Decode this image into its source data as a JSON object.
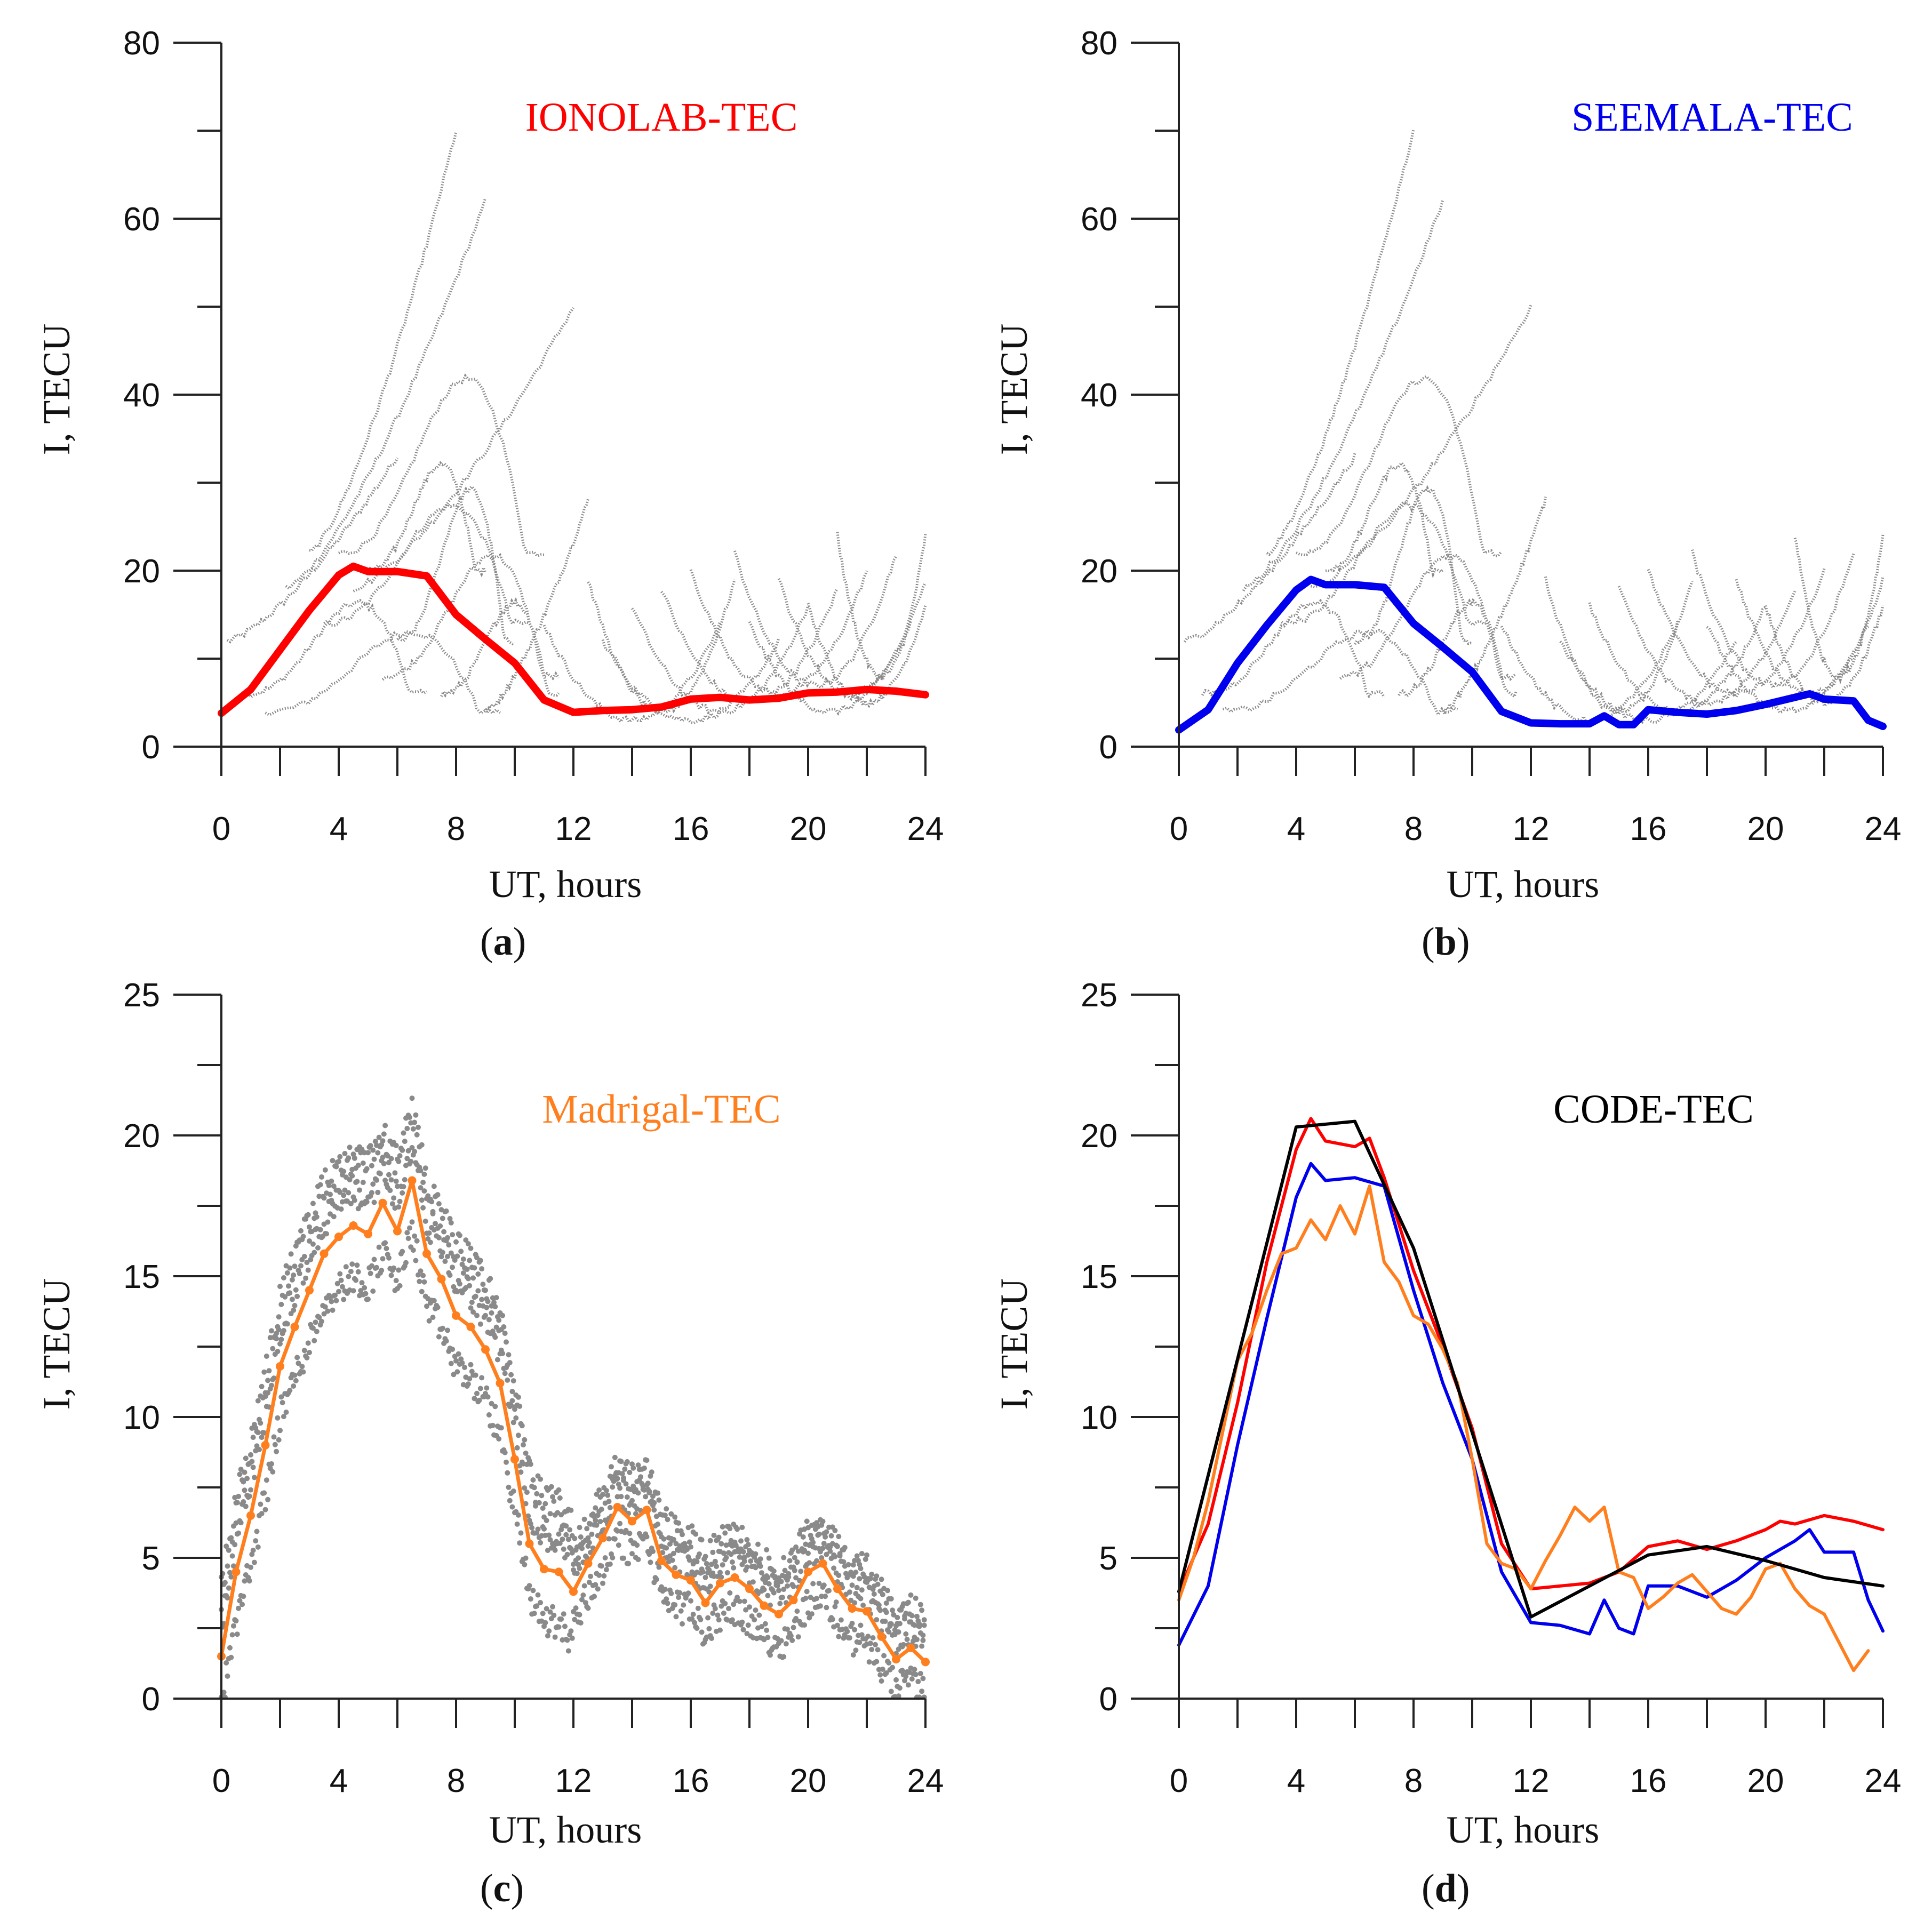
{
  "colors": {
    "ionolab": "#ff0000",
    "seemala": "#0000ee",
    "madrigal": "#ff7f1e",
    "code": "#000000",
    "traces": "#8a8a8a"
  },
  "chart_data": [
    {
      "type": "line",
      "panel_label": "a",
      "title": "IONOLAB-TEC",
      "title_color": "#ff0000",
      "xlabel": "UT, hours",
      "ylabel": "I, TECU",
      "xlim": [
        0,
        24
      ],
      "ylim": [
        0,
        80
      ],
      "xticks": [
        0,
        4,
        8,
        12,
        16,
        20,
        24
      ],
      "yticks": [
        0,
        20,
        40,
        60,
        80
      ],
      "background_traces": "gray scatter traces of individual satellite TEC",
      "series": [
        {
          "name": "IONOLAB-TEC",
          "color": "#ff0000",
          "x": [
            0,
            1,
            2,
            3,
            4,
            4.5,
            5,
            6,
            7,
            8,
            9,
            10,
            11,
            12,
            13,
            14,
            15,
            16,
            17,
            18,
            19,
            20,
            21,
            22,
            23,
            24
          ],
          "y": [
            3.8,
            6.5,
            11,
            15.5,
            19.5,
            20.5,
            19.9,
            19.9,
            19.4,
            15,
            12.2,
            9.5,
            5.3,
            3.9,
            4.1,
            4.2,
            4.5,
            5.4,
            5.6,
            5.3,
            5.5,
            6.1,
            6.2,
            6.5,
            6.3,
            5.9
          ]
        }
      ]
    },
    {
      "type": "line",
      "panel_label": "b",
      "title": "SEEMALA-TEC",
      "title_color": "#0000ee",
      "xlabel": "UT, hours",
      "ylabel": "I, TECU",
      "xlim": [
        0,
        24
      ],
      "ylim": [
        0,
        80
      ],
      "xticks": [
        0,
        4,
        8,
        12,
        16,
        20,
        24
      ],
      "yticks": [
        0,
        20,
        40,
        60,
        80
      ],
      "background_traces": "gray scatter traces of individual satellite TEC",
      "series": [
        {
          "name": "SEEMALA-TEC",
          "color": "#0000ee",
          "x": [
            0,
            1,
            2,
            3,
            4,
            4.5,
            5,
            6,
            7,
            8,
            9,
            10,
            11,
            12,
            13,
            14,
            14.5,
            15,
            15.5,
            16,
            17,
            18,
            19,
            20,
            21,
            21.5,
            22,
            23,
            23.5,
            24
          ],
          "y": [
            1.9,
            4.2,
            9.5,
            13.8,
            17.8,
            19,
            18.4,
            18.4,
            18.1,
            14,
            11.3,
            8.5,
            4,
            2.7,
            2.6,
            2.6,
            3.5,
            2.5,
            2.5,
            4.2,
            3.9,
            3.7,
            4.1,
            4.8,
            5.6,
            6,
            5.4,
            5.2,
            3,
            2.3
          ]
        }
      ]
    },
    {
      "type": "line",
      "panel_label": "c",
      "title": "Madrigal-TEC",
      "title_color": "#ff7f1e",
      "xlabel": "UT, hours",
      "ylabel": "I, TECU",
      "xlim": [
        0,
        24
      ],
      "ylim": [
        0,
        25
      ],
      "xticks": [
        0,
        4,
        8,
        12,
        16,
        20,
        24
      ],
      "yticks": [
        0,
        5,
        10,
        15,
        20,
        25
      ],
      "background_traces": "gray scatter points of individual Madrigal TEC values",
      "series": [
        {
          "name": "Madrigal-TEC",
          "color": "#ff7f1e",
          "x": [
            0,
            0.5,
            1,
            1.5,
            2,
            2.5,
            3,
            3.5,
            4,
            4.5,
            5,
            5.5,
            6,
            6.5,
            7,
            7.5,
            8,
            8.5,
            9,
            9.5,
            10,
            10.5,
            11,
            11.5,
            12,
            12.5,
            13,
            13.5,
            14,
            14.5,
            15,
            15.5,
            16,
            16.5,
            17,
            17.5,
            18,
            18.5,
            19,
            19.5,
            20,
            20.5,
            21,
            21.5,
            22,
            22.5,
            23,
            23.5,
            24
          ],
          "y": [
            1.5,
            4.5,
            6.5,
            9,
            11.8,
            13.2,
            14.5,
            15.8,
            16.4,
            16.8,
            16.5,
            17.6,
            16.6,
            18.4,
            15.8,
            14.9,
            13.6,
            13.2,
            12.4,
            11.2,
            8.5,
            5.5,
            4.6,
            4.5,
            3.8,
            4.8,
            5.7,
            6.8,
            6.3,
            6.7,
            4.9,
            4.4,
            4.2,
            3.4,
            4.1,
            4.3,
            3.9,
            3.3,
            3.0,
            3.5,
            4.5,
            4.8,
            3.9,
            3.2,
            3.1,
            2.2,
            1.4,
            1.8,
            1.3
          ]
        }
      ]
    },
    {
      "type": "line",
      "panel_label": "d",
      "title": "CODE-TEC",
      "title_color": "#000000",
      "xlabel": "UT, hours",
      "ylabel": "I, TECU",
      "xlim": [
        0,
        24
      ],
      "ylim": [
        0,
        25
      ],
      "xticks": [
        0,
        4,
        8,
        12,
        16,
        20,
        24
      ],
      "yticks": [
        0,
        5,
        10,
        15,
        20,
        25
      ],
      "series": [
        {
          "name": "IONOLAB-TEC",
          "color": "#ff0000",
          "x": [
            0,
            1,
            2,
            3,
            4,
            4.5,
            5,
            6,
            6.5,
            7,
            8,
            9,
            10,
            11,
            12,
            13,
            14,
            15,
            16,
            17,
            18,
            19,
            20,
            20.5,
            21,
            22,
            23,
            24
          ],
          "y": [
            3.8,
            6.2,
            10.5,
            15.5,
            19.5,
            20.6,
            19.8,
            19.6,
            19.9,
            18.5,
            15.2,
            12.5,
            9.6,
            5.5,
            3.9,
            4.0,
            4.1,
            4.5,
            5.4,
            5.6,
            5.3,
            5.6,
            6.0,
            6.3,
            6.2,
            6.5,
            6.3,
            6.0
          ]
        },
        {
          "name": "SEEMALA-TEC",
          "color": "#0000ee",
          "x": [
            0,
            1,
            2,
            3,
            4,
            4.5,
            5,
            6,
            7,
            8,
            9,
            10,
            11,
            12,
            13,
            14,
            14.5,
            15,
            15.5,
            16,
            17,
            18,
            19,
            20,
            21,
            21.5,
            22,
            23,
            23.5,
            24
          ],
          "y": [
            1.9,
            4.0,
            9.0,
            13.5,
            17.8,
            19.0,
            18.4,
            18.5,
            18.2,
            14.5,
            11.2,
            8.5,
            4.5,
            2.7,
            2.6,
            2.3,
            3.5,
            2.5,
            2.3,
            4.0,
            4.0,
            3.6,
            4.2,
            5.0,
            5.6,
            6.0,
            5.2,
            5.2,
            3.5,
            2.4
          ]
        },
        {
          "name": "Madrigal-TEC",
          "color": "#ff7f1e",
          "x": [
            0,
            0.5,
            1,
            1.5,
            2,
            2.5,
            3,
            3.5,
            4,
            4.5,
            5,
            5.5,
            6,
            6.5,
            7,
            7.5,
            8,
            8.5,
            9,
            9.5,
            10,
            10.5,
            11,
            11.5,
            12,
            12.5,
            13,
            13.5,
            14,
            14.5,
            15,
            15.5,
            16,
            16.5,
            17,
            17.5,
            18,
            18.5,
            19,
            19.5,
            20,
            20.5,
            21,
            21.5,
            22,
            22.5,
            23,
            23.5
          ],
          "y": [
            3.5,
            5.0,
            7.0,
            9.5,
            12.0,
            13.0,
            14.5,
            15.8,
            16.0,
            17.0,
            16.3,
            17.5,
            16.5,
            18.2,
            15.5,
            14.8,
            13.6,
            13.3,
            12.4,
            11.2,
            8.5,
            5.5,
            4.8,
            4.6,
            3.9,
            4.9,
            5.8,
            6.8,
            6.3,
            6.8,
            4.5,
            4.3,
            3.2,
            3.6,
            4.1,
            4.4,
            3.8,
            3.2,
            3.0,
            3.6,
            4.6,
            4.8,
            3.9,
            3.3,
            3.0,
            2.0,
            1.0,
            1.7
          ]
        },
        {
          "name": "CODE-TEC",
          "color": "#000000",
          "x": [
            0,
            4,
            6,
            8,
            12,
            16,
            18,
            20,
            22,
            24
          ],
          "y": [
            3.8,
            20.3,
            20.5,
            16.0,
            2.9,
            5.1,
            5.4,
            4.9,
            4.3,
            4.0
          ]
        }
      ]
    }
  ]
}
